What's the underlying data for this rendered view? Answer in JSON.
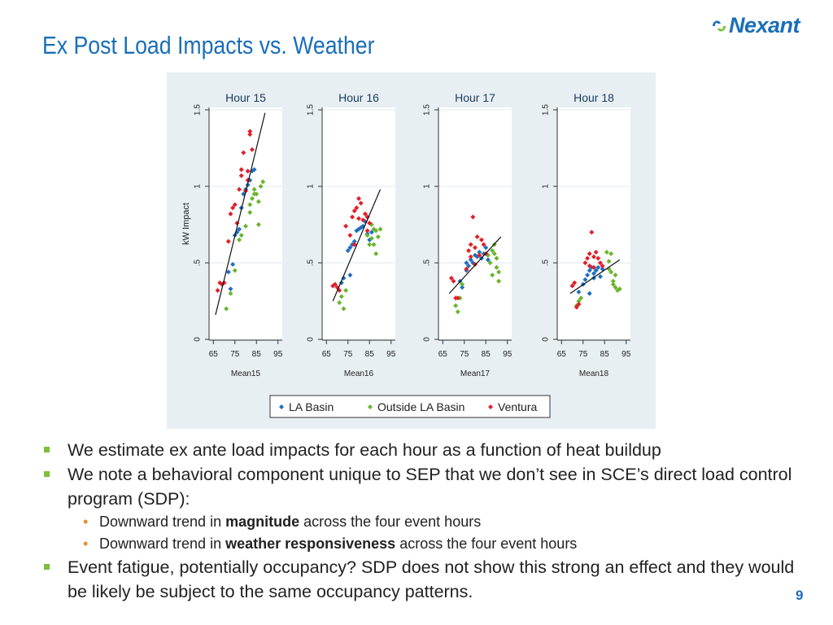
{
  "slide": {
    "title": "Ex Post Load Impacts vs. Weather",
    "logo_text": "Nexant",
    "page_number": "9"
  },
  "bullets": [
    {
      "level": 1,
      "parts": [
        {
          "text": "We estimate ex ante load impacts for each hour as a function of heat buildup",
          "bold": false
        }
      ]
    },
    {
      "level": 1,
      "parts": [
        {
          "text": "We note a behavioral component unique to SEP that we don’t see in SCE’s direct load control program (SDP):",
          "bold": false
        }
      ]
    },
    {
      "level": 2,
      "parts": [
        {
          "text": "Downward trend in ",
          "bold": false
        },
        {
          "text": "magnitude",
          "bold": true
        },
        {
          "text": " across the four event hours",
          "bold": false
        }
      ]
    },
    {
      "level": 2,
      "parts": [
        {
          "text": "Downward trend in ",
          "bold": false
        },
        {
          "text": "weather responsiveness",
          "bold": true
        },
        {
          "text": " across the four event hours",
          "bold": false
        }
      ]
    },
    {
      "level": 1,
      "parts": [
        {
          "text": "Event fatigue, potentially occupancy? SDP does not show this strong an effect and they would be likely be subject to the same occupancy patterns.",
          "bold": false
        }
      ]
    }
  ],
  "colors": {
    "title": "#1a6fb8",
    "bullet_square": "#7cbf3a",
    "bullet_dot": "#e8902a",
    "la_basin": "#1f6fc0",
    "outside_la_basin": "#6ab42d",
    "ventura": "#e0202a",
    "chart_bg": "#e8eff3"
  },
  "chart_data": {
    "type": "scatter",
    "ylabel": "kW Impact",
    "ylim": [
      0,
      1.5
    ],
    "yticks": [
      {
        "value": 0,
        "label": "0"
      },
      {
        "value": 0.5,
        "label": ".5"
      },
      {
        "value": 1,
        "label": "1"
      },
      {
        "value": 1.5,
        "label": "1.5"
      }
    ],
    "xlim": [
      63,
      97
    ],
    "xticks": [
      65,
      75,
      85,
      95
    ],
    "legend": {
      "position": "bottom",
      "entries": [
        "LA Basin",
        "Outside LA Basin",
        "Ventura"
      ]
    },
    "panels": [
      {
        "title": "Hour 15",
        "xlabel": "Mean15",
        "fit_line": {
          "x": [
            66,
            89
          ],
          "y": [
            0.16,
            1.48
          ]
        },
        "series": [
          {
            "name": "LA Basin",
            "points": [
              [
                73,
                0.33
              ],
              [
                74,
                0.49
              ],
              [
                75,
                0.68
              ],
              [
                76,
                0.7
              ],
              [
                77,
                0.72
              ],
              [
                78,
                0.86
              ],
              [
                79,
                0.95
              ],
              [
                80,
                0.98
              ],
              [
                81,
                1.01
              ],
              [
                82,
                1.04
              ],
              [
                83,
                1.1
              ],
              [
                84,
                1.11
              ],
              [
                72,
                0.44
              ]
            ]
          },
          {
            "name": "Outside LA Basin",
            "points": [
              [
                71,
                0.2
              ],
              [
                73,
                0.3
              ],
              [
                75,
                0.45
              ],
              [
                77,
                0.65
              ],
              [
                78,
                0.68
              ],
              [
                80,
                0.74
              ],
              [
                82,
                0.88
              ],
              [
                83,
                0.92
              ],
              [
                84,
                0.98
              ],
              [
                85,
                0.95
              ],
              [
                86,
                0.9
              ],
              [
                87,
                1.0
              ],
              [
                86,
                0.75
              ],
              [
                88,
                1.03
              ],
              [
                84,
                0.95
              ],
              [
                82,
                0.83
              ]
            ]
          },
          {
            "name": "Ventura",
            "points": [
              [
                67,
                0.32
              ],
              [
                68,
                0.37
              ],
              [
                69,
                0.36
              ],
              [
                70,
                0.37
              ],
              [
                72,
                0.64
              ],
              [
                73,
                0.82
              ],
              [
                75,
                0.88
              ],
              [
                76,
                0.76
              ],
              [
                77,
                0.98
              ],
              [
                78,
                1.07
              ],
              [
                78,
                1.11
              ],
              [
                79,
                1.22
              ],
              [
                81,
                1.1
              ],
              [
                82,
                1.34
              ],
              [
                82,
                1.36
              ],
              [
                83,
                1.24
              ],
              [
                80,
                0.97
              ],
              [
                81,
                1.04
              ],
              [
                74,
                0.86
              ]
            ]
          }
        ]
      },
      {
        "title": "Hour 16",
        "xlabel": "Mean16",
        "fit_line": {
          "x": [
            68,
            90
          ],
          "y": [
            0.25,
            0.98
          ]
        },
        "series": [
          {
            "name": "LA Basin",
            "points": [
              [
                72,
                0.37
              ],
              [
                73,
                0.4
              ],
              [
                75,
                0.58
              ],
              [
                76,
                0.6
              ],
              [
                77,
                0.62
              ],
              [
                78,
                0.64
              ],
              [
                79,
                0.71
              ],
              [
                80,
                0.72
              ],
              [
                81,
                0.73
              ],
              [
                82,
                0.74
              ],
              [
                83,
                0.77
              ],
              [
                84,
                0.69
              ],
              [
                85,
                0.65
              ],
              [
                86,
                0.7
              ],
              [
                76,
                0.42
              ]
            ]
          },
          {
            "name": "Outside LA Basin",
            "points": [
              [
                71,
                0.24
              ],
              [
                72,
                0.28
              ],
              [
                73,
                0.2
              ],
              [
                74,
                0.32
              ],
              [
                84,
                0.68
              ],
              [
                85,
                0.62
              ],
              [
                86,
                0.66
              ],
              [
                87,
                0.72
              ],
              [
                88,
                0.71
              ],
              [
                89,
                0.67
              ],
              [
                90,
                0.72
              ],
              [
                88,
                0.56
              ],
              [
                86,
                0.75
              ],
              [
                87,
                0.62
              ]
            ]
          },
          {
            "name": "Ventura",
            "points": [
              [
                68,
                0.35
              ],
              [
                69,
                0.36
              ],
              [
                70,
                0.34
              ],
              [
                71,
                0.32
              ],
              [
                74,
                0.74
              ],
              [
                76,
                0.68
              ],
              [
                77,
                0.8
              ],
              [
                78,
                0.84
              ],
              [
                79,
                0.86
              ],
              [
                80,
                0.79
              ],
              [
                80,
                0.92
              ],
              [
                81,
                0.89
              ],
              [
                82,
                0.78
              ],
              [
                83,
                0.82
              ],
              [
                84,
                0.8
              ],
              [
                84,
                0.71
              ],
              [
                85,
                0.76
              ],
              [
                78,
                0.62
              ]
            ]
          }
        ]
      },
      {
        "title": "Hour 17",
        "xlabel": "Mean17",
        "fit_line": {
          "x": [
            68,
            92
          ],
          "y": [
            0.3,
            0.67
          ]
        },
        "series": [
          {
            "name": "LA Basin",
            "points": [
              [
                73,
                0.38
              ],
              [
                74,
                0.34
              ],
              [
                76,
                0.45
              ],
              [
                77,
                0.48
              ],
              [
                78,
                0.52
              ],
              [
                79,
                0.5
              ],
              [
                80,
                0.55
              ],
              [
                81,
                0.54
              ],
              [
                82,
                0.57
              ],
              [
                83,
                0.53
              ],
              [
                84,
                0.56
              ],
              [
                85,
                0.6
              ],
              [
                86,
                0.52
              ],
              [
                76,
                0.5
              ]
            ]
          },
          {
            "name": "Outside LA Basin",
            "points": [
              [
                71,
                0.22
              ],
              [
                72,
                0.18
              ],
              [
                73,
                0.27
              ],
              [
                74,
                0.36
              ],
              [
                86,
                0.55
              ],
              [
                87,
                0.5
              ],
              [
                88,
                0.58
              ],
              [
                89,
                0.56
              ],
              [
                90,
                0.47
              ],
              [
                91,
                0.44
              ],
              [
                90,
                0.53
              ],
              [
                91,
                0.38
              ],
              [
                88,
                0.42
              ],
              [
                89,
                0.62
              ]
            ]
          },
          {
            "name": "Ventura",
            "points": [
              [
                69,
                0.4
              ],
              [
                70,
                0.38
              ],
              [
                71,
                0.27
              ],
              [
                72,
                0.27
              ],
              [
                77,
                0.58
              ],
              [
                78,
                0.62
              ],
              [
                79,
                0.8
              ],
              [
                80,
                0.6
              ],
              [
                81,
                0.67
              ],
              [
                82,
                0.55
              ],
              [
                83,
                0.65
              ],
              [
                84,
                0.62
              ],
              [
                85,
                0.56
              ],
              [
                78,
                0.54
              ],
              [
                80,
                0.49
              ],
              [
                76,
                0.46
              ]
            ]
          }
        ]
      },
      {
        "title": "Hour 18",
        "xlabel": "Mean18",
        "fit_line": {
          "x": [
            69,
            92
          ],
          "y": [
            0.3,
            0.52
          ]
        },
        "series": [
          {
            "name": "LA Basin",
            "points": [
              [
                73,
                0.31
              ],
              [
                75,
                0.36
              ],
              [
                76,
                0.39
              ],
              [
                77,
                0.42
              ],
              [
                78,
                0.45
              ],
              [
                79,
                0.47
              ],
              [
                80,
                0.43
              ],
              [
                81,
                0.45
              ],
              [
                82,
                0.47
              ],
              [
                83,
                0.41
              ],
              [
                84,
                0.46
              ],
              [
                78,
                0.3
              ],
              [
                80,
                0.4
              ]
            ]
          },
          {
            "name": "Outside LA Basin",
            "points": [
              [
                72,
                0.22
              ],
              [
                73,
                0.25
              ],
              [
                74,
                0.27
              ],
              [
                86,
                0.57
              ],
              [
                87,
                0.51
              ],
              [
                88,
                0.56
              ],
              [
                89,
                0.38
              ],
              [
                90,
                0.34
              ],
              [
                91,
                0.32
              ],
              [
                90,
                0.42
              ],
              [
                88,
                0.44
              ],
              [
                89,
                0.36
              ],
              [
                87,
                0.46
              ],
              [
                92,
                0.33
              ]
            ]
          },
          {
            "name": "Ventura",
            "points": [
              [
                70,
                0.35
              ],
              [
                71,
                0.37
              ],
              [
                72,
                0.21
              ],
              [
                73,
                0.23
              ],
              [
                76,
                0.5
              ],
              [
                77,
                0.53
              ],
              [
                78,
                0.56
              ],
              [
                79,
                0.7
              ],
              [
                80,
                0.54
              ],
              [
                81,
                0.57
              ],
              [
                82,
                0.53
              ],
              [
                83,
                0.5
              ],
              [
                84,
                0.48
              ],
              [
                80,
                0.47
              ],
              [
                78,
                0.48
              ]
            ]
          }
        ]
      }
    ]
  }
}
